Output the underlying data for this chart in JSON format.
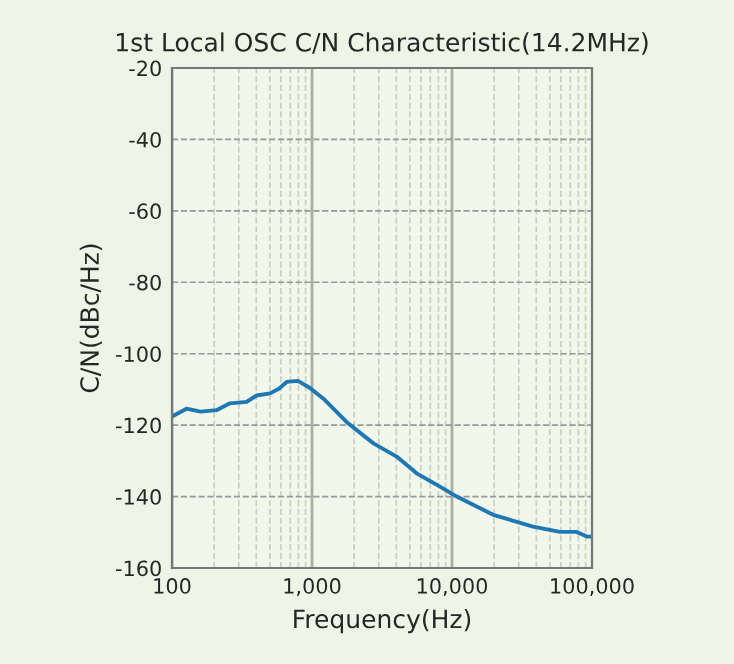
{
  "chart_data": {
    "type": "line",
    "title": "1st Local OSC C/N Characteristic(14.2MHz)",
    "xlabel": "Frequency(Hz)",
    "ylabel": "C/N(dBc/Hz)",
    "log": "x",
    "grid": true,
    "xlim": [
      100,
      100000
    ],
    "ylim": [
      -160,
      -20
    ],
    "xticks": [
      {
        "value": 100,
        "label": "100"
      },
      {
        "value": 1000,
        "label": "1,000"
      },
      {
        "value": 10000,
        "label": "10,000"
      },
      {
        "value": 100000,
        "label": "100,000"
      }
    ],
    "yticks": [
      -160,
      -140,
      -120,
      -100,
      -80,
      -60,
      -40,
      -20
    ],
    "series": [
      {
        "color": "#1f77b4",
        "x": [
          100,
          127,
          160,
          208,
          259,
          341,
          402,
          501,
          580,
          659,
          794,
          967,
          1207,
          1765,
          2747,
          4025,
          5590,
          8214,
          10800,
          19700,
          37900,
          59000,
          77500,
          92000,
          100000
        ],
        "values": [
          -117.6,
          -115.4,
          -116.2,
          -115.8,
          -113.9,
          -113.5,
          -111.7,
          -111.1,
          -109.8,
          -107.9,
          -107.6,
          -109.6,
          -112.6,
          -119.1,
          -125.1,
          -128.8,
          -133.5,
          -137.2,
          -140.0,
          -145.1,
          -148.4,
          -149.9,
          -149.9,
          -151.2,
          -151.2
        ]
      }
    ]
  }
}
